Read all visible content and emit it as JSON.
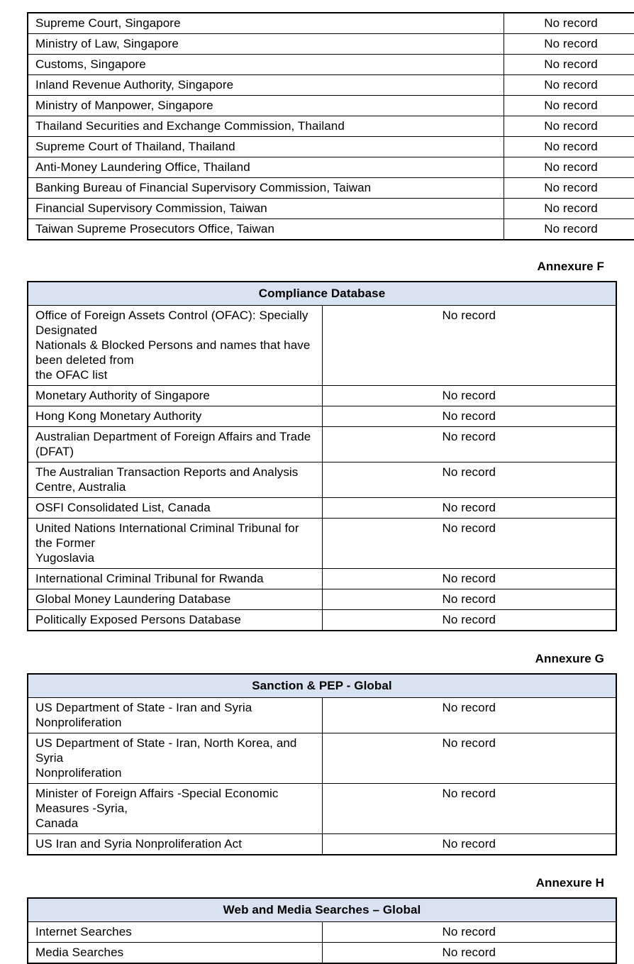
{
  "colors": {
    "table_header_bg": "#d9e2f1",
    "border": "#000000",
    "text": "#000000"
  },
  "tables": [
    {
      "annexure": null,
      "title": null,
      "rows": [
        {
          "source": "Supreme Court, Singapore",
          "result": "No record"
        },
        {
          "source": "Ministry of Law, Singapore",
          "result": "No record"
        },
        {
          "source": "Customs, Singapore",
          "result": "No record"
        },
        {
          "source": "Inland Revenue Authority, Singapore",
          "result": "No record"
        },
        {
          "source": "Ministry of Manpower, Singapore",
          "result": "No record"
        },
        {
          "source": "Thailand Securities and Exchange Commission, Thailand",
          "result": "No record"
        },
        {
          "source": "Supreme Court of Thailand, Thailand",
          "result": "No record"
        },
        {
          "source": "Anti-Money Laundering Office, Thailand",
          "result": "No record"
        },
        {
          "source": "Banking Bureau of Financial Supervisory Commission, Taiwan",
          "result": "No record"
        },
        {
          "source": "Financial Supervisory Commission, Taiwan",
          "result": "No record"
        },
        {
          "source": "Taiwan Supreme Prosecutors Office, Taiwan",
          "result": "No record"
        }
      ]
    },
    {
      "annexure": "Annexure F",
      "title": "Compliance Database",
      "rows": [
        {
          "source": "Office of Foreign Assets Control (OFAC): Specially Designated\nNationals & Blocked Persons and names that have been deleted from\nthe OFAC list",
          "result": "No record"
        },
        {
          "source": "Monetary Authority of Singapore",
          "result": "No record"
        },
        {
          "source": "Hong Kong Monetary Authority",
          "result": "No record"
        },
        {
          "source": "Australian Department of Foreign Affairs and Trade (DFAT)",
          "result": "No record"
        },
        {
          "source": "The Australian Transaction Reports and Analysis Centre, Australia",
          "result": "No record"
        },
        {
          "source": "OSFI Consolidated List, Canada",
          "result": "No record"
        },
        {
          "source": "United Nations International Criminal Tribunal for the Former\nYugoslavia",
          "result": "No record"
        },
        {
          "source": "International Criminal Tribunal for Rwanda",
          "result": "No record"
        },
        {
          "source": "Global Money Laundering Database",
          "result": "No record"
        },
        {
          "source": "Politically Exposed Persons Database",
          "result": "No record"
        }
      ]
    },
    {
      "annexure": "Annexure G",
      "title": "Sanction & PEP - Global",
      "rows": [
        {
          "source": "US Department of State - Iran and Syria Nonproliferation",
          "result": "No record"
        },
        {
          "source": "US Department of State - Iran, North Korea, and Syria\nNonproliferation",
          "result": "No record"
        },
        {
          "source": "Minister of Foreign Affairs -Special Economic Measures -Syria,\nCanada",
          "result": "No record"
        },
        {
          "source": "US Iran and Syria Nonproliferation Act",
          "result": "No record"
        }
      ]
    },
    {
      "annexure": "Annexure H",
      "title": "Web and Media Searches – Global",
      "rows": [
        {
          "source": "Internet Searches",
          "result": "No record"
        },
        {
          "source": "Media Searches",
          "result": "No record"
        }
      ]
    }
  ]
}
